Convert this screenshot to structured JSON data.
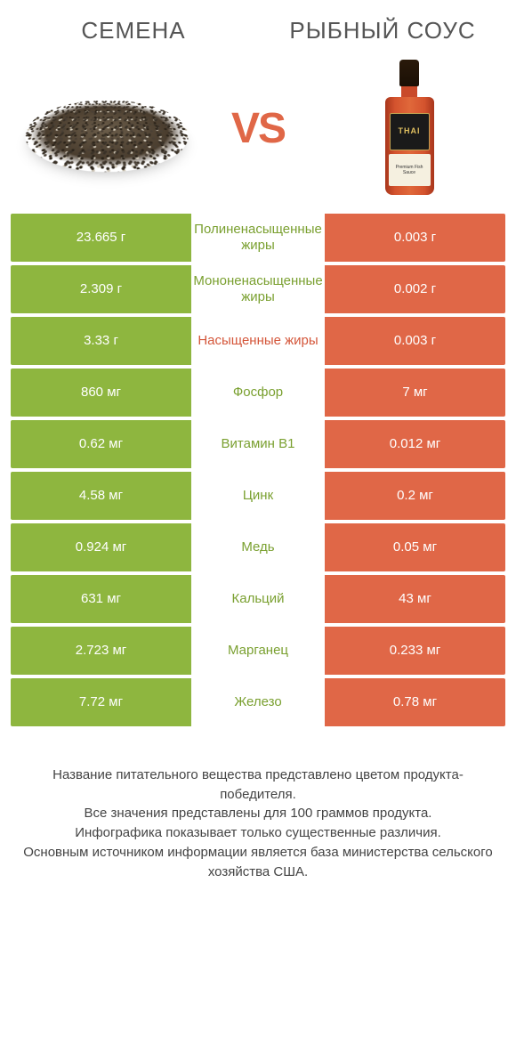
{
  "colors": {
    "green": "#8eb63f",
    "orange": "#e06747",
    "green_text": "#7aa030",
    "orange_text": "#d4563a",
    "page_bg": "#ffffff",
    "body_text": "#444"
  },
  "header": {
    "left_title": "СЕМЕНА",
    "right_title": "РЫБНЫЙ СОУС",
    "vs_label": "VS",
    "bottle_brand": "THAI",
    "bottle_sub": "Premium Fish Sauce"
  },
  "rows": [
    {
      "left": "23.665 г",
      "label": "Полиненасыщенные жиры",
      "right": "0.003 г",
      "winner": "left"
    },
    {
      "left": "2.309 г",
      "label": "Мононенасыщенные жиры",
      "right": "0.002 г",
      "winner": "left"
    },
    {
      "left": "3.33 г",
      "label": "Насыщенные жиры",
      "right": "0.003 г",
      "winner": "right"
    },
    {
      "left": "860 мг",
      "label": "Фосфор",
      "right": "7 мг",
      "winner": "left"
    },
    {
      "left": "0.62 мг",
      "label": "Витамин B1",
      "right": "0.012 мг",
      "winner": "left"
    },
    {
      "left": "4.58 мг",
      "label": "Цинк",
      "right": "0.2 мг",
      "winner": "left"
    },
    {
      "left": "0.924 мг",
      "label": "Медь",
      "right": "0.05 мг",
      "winner": "left"
    },
    {
      "left": "631 мг",
      "label": "Кальций",
      "right": "43 мг",
      "winner": "left"
    },
    {
      "left": "2.723 мг",
      "label": "Марганец",
      "right": "0.233 мг",
      "winner": "left"
    },
    {
      "left": "7.72 мг",
      "label": "Железо",
      "right": "0.78 мг",
      "winner": "left"
    }
  ],
  "footnotes": [
    "Название питательного вещества представлено цветом продукта-победителя.",
    "Все значения представлены для 100 граммов продукта.",
    "Инфографика показывает только существенные различия.",
    "Основным источником информации является база министерства сельского хозяйства США."
  ]
}
